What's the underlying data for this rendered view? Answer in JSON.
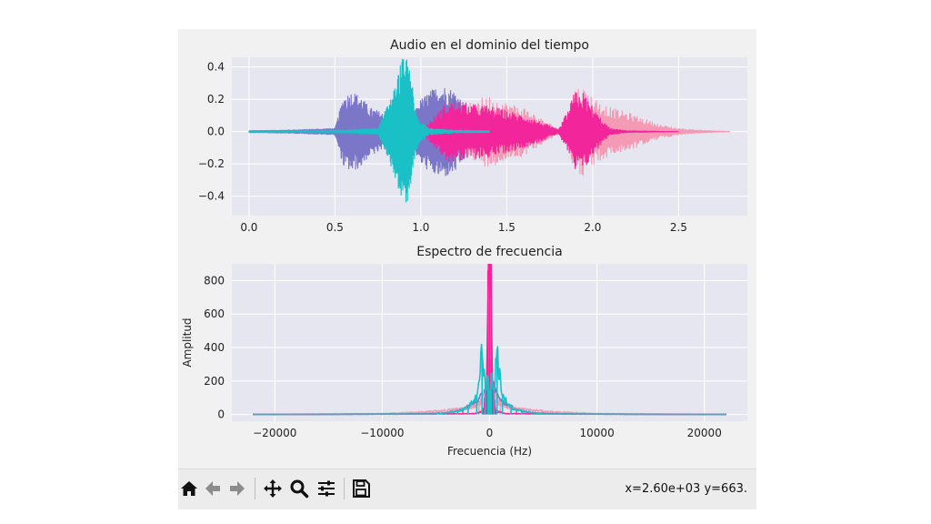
{
  "window": {
    "background": "#f1f1f1",
    "coord_readout": "x=2.60e+03 y=663."
  },
  "toolbar": {
    "buttons": [
      {
        "name": "home-icon",
        "label": "Home"
      },
      {
        "name": "back-icon",
        "label": "Back"
      },
      {
        "name": "forward-icon",
        "label": "Forward"
      },
      {
        "name": "pan-icon",
        "label": "Pan"
      },
      {
        "name": "zoom-icon",
        "label": "Zoom"
      },
      {
        "name": "configure-subplots-icon",
        "label": "Subplots"
      },
      {
        "name": "save-icon",
        "label": "Save"
      }
    ]
  },
  "colors": {
    "axes_bg": "#e6e6f0",
    "grid": "#ffffff",
    "series_purple": "#7c76c8",
    "series_light_pink": "#f49ab5",
    "series_pink": "#f2259a",
    "series_cyan": "#19c1c6"
  },
  "chart_data": [
    {
      "type": "line",
      "title": "Audio en el dominio del tiempo",
      "xlabel": "",
      "ylabel": "",
      "xlim": [
        -0.1,
        2.9
      ],
      "ylim": [
        -0.52,
        0.46
      ],
      "xticks": [
        "0.0",
        "0.5",
        "1.0",
        "1.5",
        "2.0",
        "2.5"
      ],
      "xtick_values": [
        0,
        0.5,
        1.0,
        1.5,
        2.0,
        2.5
      ],
      "yticks": [
        "−0.4",
        "−0.2",
        "0.0",
        "0.2",
        "0.4"
      ],
      "ytick_values": [
        -0.4,
        -0.2,
        0.0,
        0.2,
        0.4
      ],
      "grid": true,
      "series": [
        {
          "color": "#7c76c8",
          "x": [
            0.0,
            0.25,
            0.5,
            0.55,
            0.6,
            0.65,
            0.7,
            0.75,
            0.8,
            0.85,
            0.95,
            1.0,
            1.05,
            1.1,
            1.15,
            1.2,
            1.25,
            1.3,
            1.4
          ],
          "amp": [
            0.005,
            0.01,
            0.02,
            0.22,
            0.25,
            0.22,
            0.15,
            0.13,
            0.1,
            0.06,
            0.1,
            0.2,
            0.25,
            0.28,
            0.28,
            0.25,
            0.18,
            0.06,
            0.005
          ]
        },
        {
          "color": "#f49ab5",
          "x": [
            0.0,
            1.0,
            1.2,
            1.3,
            1.4,
            1.5,
            1.6,
            1.7,
            1.8,
            1.85,
            1.9,
            1.95,
            2.0,
            2.05,
            2.1,
            2.2,
            2.3,
            2.4,
            2.5,
            2.6,
            2.8
          ],
          "amp": [
            0.0,
            0.0,
            0.03,
            0.2,
            0.22,
            0.18,
            0.15,
            0.08,
            0.02,
            0.05,
            0.28,
            0.27,
            0.22,
            0.18,
            0.15,
            0.12,
            0.08,
            0.04,
            0.02,
            0.01,
            0.0
          ]
        },
        {
          "color": "#f2259a",
          "x": [
            0.0,
            1.0,
            1.1,
            1.15,
            1.2,
            1.25,
            1.3,
            1.4,
            1.5,
            1.6,
            1.7,
            1.8,
            1.85,
            1.9,
            1.95,
            2.0,
            2.05,
            2.1,
            2.2,
            2.5
          ],
          "amp": [
            0.0,
            0.0,
            0.12,
            0.18,
            0.2,
            0.18,
            0.17,
            0.16,
            0.13,
            0.1,
            0.06,
            0.01,
            0.12,
            0.26,
            0.24,
            0.15,
            0.08,
            0.02,
            0.005,
            0.0
          ]
        },
        {
          "color": "#19c1c6",
          "x": [
            0.0,
            0.3,
            0.6,
            0.75,
            0.8,
            0.85,
            0.88,
            0.9,
            0.93,
            0.95,
            0.97,
            1.0,
            1.05,
            1.1,
            1.2,
            1.4
          ],
          "amp": [
            0.006,
            0.005,
            0.01,
            0.02,
            0.15,
            0.28,
            0.42,
            0.48,
            0.42,
            0.3,
            0.12,
            0.06,
            0.02,
            0.015,
            0.008,
            0.005
          ]
        }
      ]
    },
    {
      "type": "line",
      "title": "Espectro de frecuencia",
      "xlabel": "Frecuencia (Hz)",
      "ylabel": "Amplitud",
      "xlim": [
        -24000,
        24000
      ],
      "ylim": [
        -40,
        900
      ],
      "xticks": [
        "−20000",
        "−10000",
        "0",
        "10000",
        "20000"
      ],
      "xtick_values": [
        -20000,
        -10000,
        0,
        10000,
        20000
      ],
      "yticks": [
        "0",
        "200",
        "400",
        "600",
        "800"
      ],
      "ytick_values": [
        0,
        200,
        400,
        600,
        800
      ],
      "grid": true,
      "series": [
        {
          "color": "#7c76c8",
          "x": [
            -22050,
            -8000,
            -4000,
            -2500,
            -1000,
            -500,
            0,
            500,
            1000,
            2500,
            4000,
            8000,
            22050
          ],
          "y": [
            0,
            3,
            10,
            30,
            80,
            150,
            250,
            150,
            80,
            30,
            10,
            3,
            0
          ]
        },
        {
          "color": "#f49ab5",
          "x": [
            -22050,
            -10000,
            -6000,
            -4000,
            -2000,
            -1000,
            -400,
            0,
            400,
            1000,
            2000,
            4000,
            6000,
            10000,
            22050
          ],
          "y": [
            0,
            5,
            15,
            25,
            40,
            60,
            120,
            300,
            120,
            60,
            40,
            25,
            15,
            5,
            0
          ]
        },
        {
          "color": "#f2259a",
          "x": [
            -22050,
            -1500,
            -600,
            -350,
            -250,
            -150,
            0,
            150,
            250,
            350,
            600,
            1500,
            22050
          ],
          "y": [
            0,
            5,
            20,
            80,
            270,
            860,
            860,
            860,
            270,
            80,
            20,
            5,
            0
          ]
        },
        {
          "color": "#19c1c6",
          "x": [
            -22050,
            -5000,
            -3000,
            -2000,
            -1200,
            -700,
            -400,
            -150,
            0,
            150,
            400,
            700,
            1200,
            2000,
            3000,
            5000,
            22050
          ],
          "y": [
            0,
            3,
            20,
            40,
            110,
            370,
            160,
            230,
            60,
            230,
            160,
            370,
            110,
            40,
            20,
            3,
            0
          ]
        }
      ]
    }
  ]
}
